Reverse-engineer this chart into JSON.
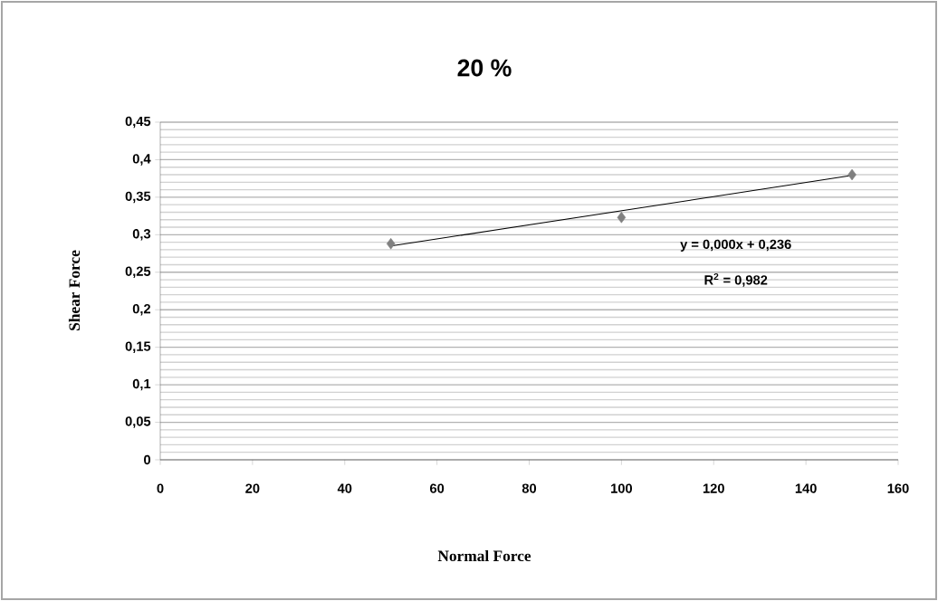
{
  "chart_data": {
    "type": "scatter",
    "title": "20 %",
    "xlabel": "Normal Force",
    "ylabel": "Shear Force",
    "series": [
      {
        "type": "scatter",
        "x": [
          50,
          100,
          150
        ],
        "values": [
          0.288,
          0.323,
          0.38
        ],
        "color": "#808080",
        "marker": "diamond"
      },
      {
        "type": "line",
        "x": [
          50,
          150
        ],
        "values": [
          0.285,
          0.379
        ],
        "color": "#000000",
        "marker": "none",
        "line_style": "solid"
      }
    ],
    "annotations": [
      "y = 0,000x + 0,236",
      "R$^{2}$ = 0,982"
    ],
    "xlim": [
      0,
      160
    ],
    "ylim": [
      0,
      0.45
    ],
    "xticks": [
      0,
      20,
      40,
      60,
      80,
      100,
      120,
      140,
      160
    ],
    "yticks": [
      0,
      {
        "value": 0.05,
        "label": "0,05"
      },
      {
        "value": 0.1,
        "label": "0,1"
      },
      {
        "value": 0.15,
        "label": "0,15"
      },
      {
        "value": 0.2,
        "label": "0,2"
      },
      {
        "value": 0.25,
        "label": "0,25"
      },
      {
        "value": 0.3,
        "label": "0,3"
      },
      {
        "value": 0.35,
        "label": "0,35"
      },
      {
        "value": 0.4,
        "label": "0,4"
      },
      {
        "value": 0.45,
        "label": "0,45"
      }
    ],
    "grid": "y"
  }
}
